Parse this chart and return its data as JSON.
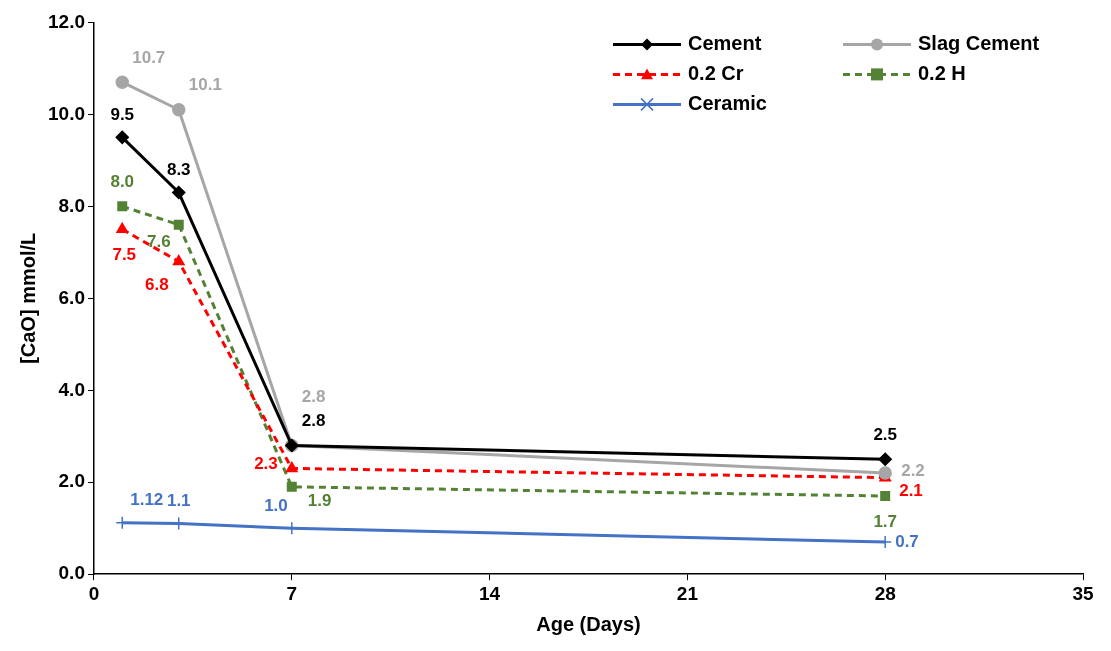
{
  "chart_data": {
    "type": "line",
    "xlabel": "Age (Days)",
    "ylabel": "[CaO] mmol/L",
    "x": [
      1,
      3,
      7,
      28
    ],
    "xlim": [
      0,
      35
    ],
    "xticks": [
      0,
      7,
      14,
      21,
      28,
      35
    ],
    "ylim": [
      0,
      12
    ],
    "yticks": [
      {
        "value": 0,
        "label": "0.0"
      },
      {
        "value": 2,
        "label": "2.0"
      },
      {
        "value": 4,
        "label": "4.0"
      },
      {
        "value": 6,
        "label": "6.0"
      },
      {
        "value": 8,
        "label": "8.0"
      },
      {
        "value": 10,
        "label": "10.0"
      },
      {
        "value": 12,
        "label": "12.0"
      }
    ],
    "legend": "top right",
    "series": [
      {
        "name": "Cement",
        "color": "#000000",
        "values": [
          9.5,
          8.3,
          2.8,
          2.5
        ],
        "value_labels": [
          "9.5",
          "8.3",
          "2.8",
          "2.5"
        ],
        "marker": "diamond",
        "line_style": "solid"
      },
      {
        "name": "Slag Cement",
        "color": "#a6a6a6",
        "values": [
          10.7,
          10.1,
          2.8,
          2.2
        ],
        "value_labels": [
          "10.7",
          "10.1",
          "2.8",
          "2.2"
        ],
        "marker": "circle",
        "line_style": "solid"
      },
      {
        "name": "0.2 Cr",
        "color": "#ff0000",
        "values": [
          7.5,
          6.8,
          2.3,
          2.1
        ],
        "value_labels": [
          "7.5",
          "6.8",
          "2.3",
          "2.1"
        ],
        "marker": "triangle",
        "line_style": "dashed"
      },
      {
        "name": "0.2 H",
        "color": "#548235",
        "values": [
          8.0,
          7.6,
          1.9,
          1.7
        ],
        "value_labels": [
          "8.0",
          "7.6",
          "1.9",
          "1.7"
        ],
        "marker": "square",
        "line_style": "dashed"
      },
      {
        "name": "Ceramic",
        "color": "#4472c4",
        "values": [
          1.12,
          1.1,
          1.0,
          0.7
        ],
        "value_labels": [
          "1.12",
          "1.1",
          "1.0",
          "0.7"
        ],
        "marker": "cross",
        "line_style": "solid"
      }
    ]
  }
}
